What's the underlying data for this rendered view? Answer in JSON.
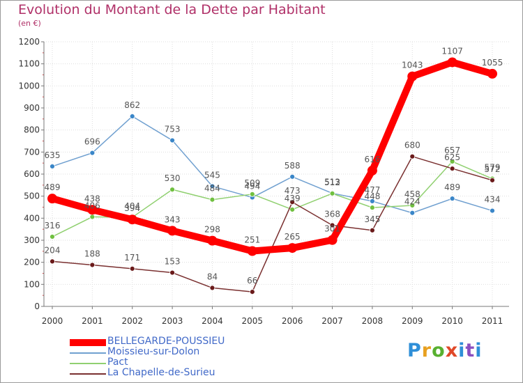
{
  "header": {
    "title": "Evolution du Montant de la Dette par Habitant",
    "subtitle": "(en €)"
  },
  "logo": {
    "text": "Proxiti"
  },
  "colors": {
    "title": "#b03068",
    "legend_text": "#4169c8",
    "axis": "#777777",
    "grid": "#dddddd"
  },
  "chart_data": {
    "type": "line",
    "title": "Evolution du Montant de la Dette par Habitant",
    "subtitle": "(en €)",
    "xlabel": "",
    "ylabel": "",
    "x": [
      "2000",
      "2001",
      "2002",
      "2003",
      "2004",
      "2005",
      "2006",
      "2007",
      "2008",
      "2009",
      "2010",
      "2011"
    ],
    "ylim": [
      0,
      1200
    ],
    "yticks": [
      0,
      100,
      200,
      300,
      400,
      500,
      600,
      700,
      800,
      900,
      1000,
      1100,
      1200
    ],
    "grid": true,
    "legend_placement": "bottom-left",
    "series": [
      {
        "name": "BELLEGARDE-POUSSIEU",
        "color": "#ff0000",
        "marker": "#ff0000",
        "thick": true,
        "values": [
          489,
          438,
          394,
          343,
          298,
          251,
          265,
          301,
          616,
          1043,
          1107,
          1055
        ]
      },
      {
        "name": "Moissieu-sur-Dolon",
        "color": "#70a0d0",
        "marker": "#3a86c8",
        "thick": false,
        "values": [
          635,
          696,
          862,
          753,
          545,
          494,
          588,
          513,
          477,
          424,
          489,
          434
        ]
      },
      {
        "name": "Pact",
        "color": "#90d070",
        "marker": "#70c040",
        "thick": false,
        "values": [
          316,
          406,
          404,
          530,
          484,
          509,
          439,
          512,
          448,
          458,
          657,
          579
        ]
      },
      {
        "name": "La Chapelle-de-Surieu",
        "color": "#7a3030",
        "marker": "#6a1a1a",
        "thick": false,
        "values": [
          204,
          188,
          171,
          153,
          84,
          66,
          473,
          368,
          345,
          680,
          625,
          572
        ]
      }
    ]
  }
}
